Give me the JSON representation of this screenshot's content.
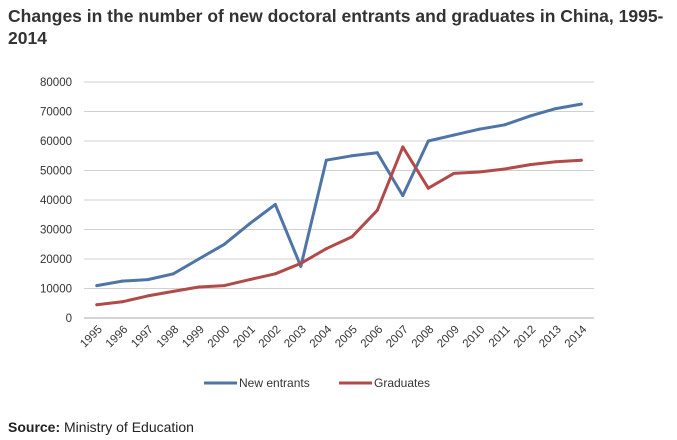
{
  "page": {
    "title": "Changes in the number of new doctoral entrants and graduates in China, 1995-2014",
    "source_label": "Source:",
    "source_text": "Ministry of Education"
  },
  "chart_data": {
    "type": "line",
    "title": "Changes in the number of new doctoral entrants and graduates in China, 1995-2014",
    "xlabel": "",
    "ylabel": "",
    "categories": [
      "1995",
      "1996",
      "1997",
      "1998",
      "1999",
      "2000",
      "2001",
      "2002",
      "2003",
      "2004",
      "2005",
      "2006",
      "2007",
      "2008",
      "2009",
      "2010",
      "2011",
      "2012",
      "2013",
      "2014"
    ],
    "ylim": [
      0,
      80000
    ],
    "yticks": [
      "0",
      "10000",
      "20000",
      "30000",
      "40000",
      "50000",
      "60000",
      "70000",
      "80000"
    ],
    "grid": true,
    "legend_position": "bottom",
    "series": [
      {
        "name": "New entrants",
        "color": "#4f74a6",
        "values": [
          11000,
          12500,
          13000,
          15000,
          20000,
          25000,
          32000,
          38500,
          17500,
          53500,
          55000,
          56000,
          41500,
          60000,
          62000,
          64000,
          65500,
          68500,
          71000,
          72500
        ]
      },
      {
        "name": "Graduates",
        "color": "#b24a4a",
        "values": [
          4500,
          5500,
          7500,
          9000,
          10500,
          11000,
          13000,
          15000,
          18500,
          23500,
          27500,
          36500,
          58000,
          44000,
          49000,
          49500,
          50500,
          52000,
          53000,
          53500
        ]
      }
    ]
  }
}
